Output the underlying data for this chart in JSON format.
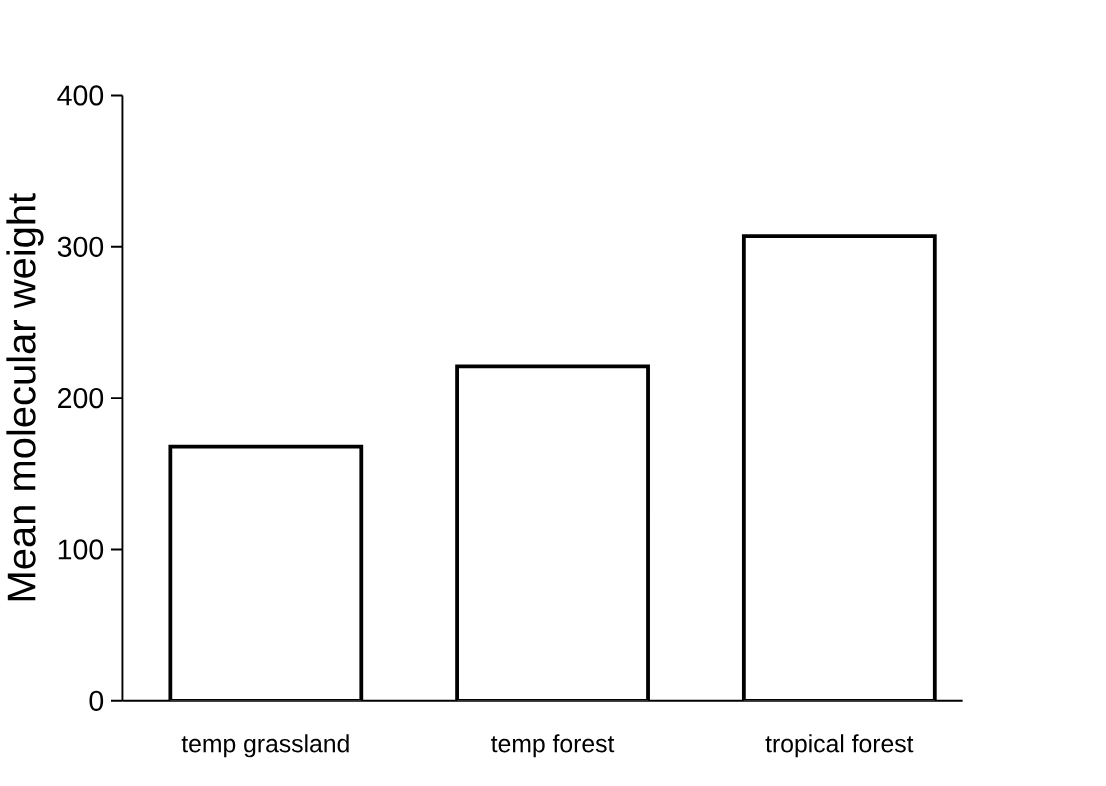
{
  "chart_data": {
    "type": "bar",
    "ylabel": "Mean molecular weight",
    "categories": [
      "temp grassland",
      "temp forest",
      "tropical forest"
    ],
    "values": [
      168,
      221,
      307
    ],
    "color": "#ffffff",
    "ylim": [
      0,
      400
    ],
    "yticks": [
      0,
      100,
      200,
      300,
      400
    ],
    "grid": false
  }
}
